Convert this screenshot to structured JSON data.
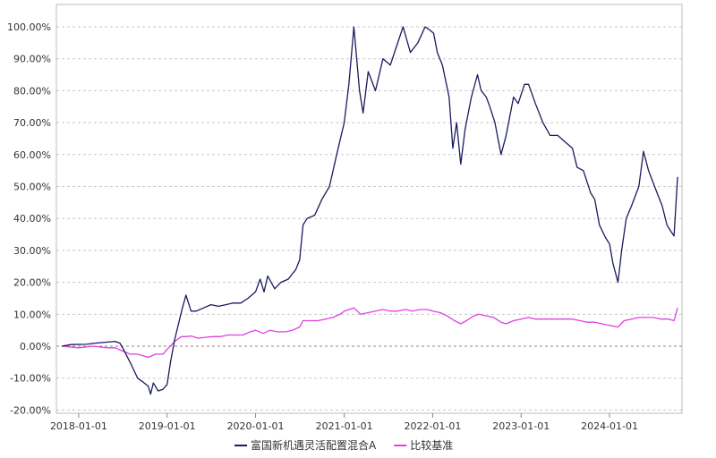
{
  "chart_data": {
    "type": "line",
    "title": "",
    "xlabel": "",
    "ylabel": "",
    "grid": true,
    "legend_position": "bottom",
    "xlim": [
      "2017-10-01",
      "2024-10-26"
    ],
    "ylim": [
      -21.0,
      107.0
    ],
    "y_ticks": [
      -20,
      -10,
      0,
      10,
      20,
      30,
      40,
      50,
      60,
      70,
      80,
      90,
      100
    ],
    "y_tick_labels": [
      "-20.00%",
      "-10.00%",
      "0.00%",
      "10.00%",
      "20.00%",
      "30.00%",
      "40.00%",
      "50.00%",
      "60.00%",
      "70.00%",
      "80.00%",
      "90.00%",
      "100.00%"
    ],
    "x_ticks": [
      "2018-01-01",
      "2019-01-01",
      "2020-01-01",
      "2021-01-01",
      "2022-01-01",
      "2023-01-01",
      "2024-01-01"
    ],
    "x_tick_labels": [
      "2018-01-01",
      "2019-01-01",
      "2020-01-01",
      "2021-01-01",
      "2022-01-01",
      "2023-01-01",
      "2024-01-01"
    ],
    "series": [
      {
        "name": "富国新机遇灵活配置混合A",
        "color": "#1a1a5e",
        "points": [
          [
            "2017-10-23",
            0.0
          ],
          [
            "2017-12-01",
            0.5
          ],
          [
            "2018-02-01",
            0.6
          ],
          [
            "2018-03-15",
            1.0
          ],
          [
            "2018-05-01",
            1.3
          ],
          [
            "2018-06-01",
            1.5
          ],
          [
            "2018-06-20",
            1.0
          ],
          [
            "2018-07-05",
            -1.0
          ],
          [
            "2018-08-01",
            -5.0
          ],
          [
            "2018-08-20",
            -8.0
          ],
          [
            "2018-09-01",
            -10.0
          ],
          [
            "2018-09-20",
            -11.0
          ],
          [
            "2018-10-15",
            -12.5
          ],
          [
            "2018-10-25",
            -15.0
          ],
          [
            "2018-11-05",
            -11.5
          ],
          [
            "2018-11-25",
            -14.0
          ],
          [
            "2018-12-15",
            -13.5
          ],
          [
            "2019-01-01",
            -12.0
          ],
          [
            "2019-01-15",
            -5.0
          ],
          [
            "2019-02-01",
            2.0
          ],
          [
            "2019-02-20",
            8.0
          ],
          [
            "2019-03-05",
            12.0
          ],
          [
            "2019-03-20",
            16.0
          ],
          [
            "2019-04-10",
            11.0
          ],
          [
            "2019-05-01",
            11.0
          ],
          [
            "2019-06-01",
            12.0
          ],
          [
            "2019-07-01",
            13.0
          ],
          [
            "2019-08-01",
            12.5
          ],
          [
            "2019-09-01",
            13.0
          ],
          [
            "2019-10-01",
            13.5
          ],
          [
            "2019-11-01",
            13.5
          ],
          [
            "2019-12-01",
            15.0
          ],
          [
            "2020-01-01",
            17.0
          ],
          [
            "2020-01-20",
            21.0
          ],
          [
            "2020-02-05",
            17.0
          ],
          [
            "2020-02-20",
            22.0
          ],
          [
            "2020-03-20",
            18.0
          ],
          [
            "2020-04-15",
            20.0
          ],
          [
            "2020-05-15",
            21.0
          ],
          [
            "2020-06-15",
            24.0
          ],
          [
            "2020-07-01",
            27.0
          ],
          [
            "2020-07-15",
            38.0
          ],
          [
            "2020-08-01",
            40.0
          ],
          [
            "2020-09-01",
            41.0
          ],
          [
            "2020-10-01",
            46.0
          ],
          [
            "2020-11-01",
            50.0
          ],
          [
            "2020-12-01",
            60.0
          ],
          [
            "2021-01-01",
            70.0
          ],
          [
            "2021-01-20",
            82.0
          ],
          [
            "2021-02-10",
            100.0
          ],
          [
            "2021-03-05",
            80.0
          ],
          [
            "2021-03-20",
            73.0
          ],
          [
            "2021-04-10",
            86.0
          ],
          [
            "2021-05-10",
            80.0
          ],
          [
            "2021-06-10",
            90.0
          ],
          [
            "2021-07-10",
            88.0
          ],
          [
            "2021-08-01",
            93.0
          ],
          [
            "2021-09-01",
            100.0
          ],
          [
            "2021-10-01",
            92.0
          ],
          [
            "2021-11-01",
            95.0
          ],
          [
            "2021-12-01",
            100.0
          ],
          [
            "2021-12-20",
            99.0
          ],
          [
            "2022-01-05",
            98.0
          ],
          [
            "2022-01-20",
            92.0
          ],
          [
            "2022-02-10",
            88.0
          ],
          [
            "2022-03-10",
            78.0
          ],
          [
            "2022-03-25",
            62.0
          ],
          [
            "2022-04-10",
            70.0
          ],
          [
            "2022-04-27",
            57.0
          ],
          [
            "2022-05-15",
            68.0
          ],
          [
            "2022-06-10",
            78.0
          ],
          [
            "2022-07-05",
            85.0
          ],
          [
            "2022-07-20",
            80.0
          ],
          [
            "2022-08-10",
            78.0
          ],
          [
            "2022-08-25",
            75.0
          ],
          [
            "2022-09-15",
            70.0
          ],
          [
            "2022-10-10",
            60.0
          ],
          [
            "2022-10-31",
            66.0
          ],
          [
            "2022-12-01",
            78.0
          ],
          [
            "2022-12-20",
            76.0
          ],
          [
            "2023-01-15",
            82.0
          ],
          [
            "2023-02-01",
            82.0
          ],
          [
            "2023-03-01",
            76.0
          ],
          [
            "2023-04-01",
            70.0
          ],
          [
            "2023-05-01",
            66.0
          ],
          [
            "2023-06-01",
            66.0
          ],
          [
            "2023-07-01",
            64.0
          ],
          [
            "2023-08-01",
            62.0
          ],
          [
            "2023-08-20",
            56.0
          ],
          [
            "2023-09-15",
            55.0
          ],
          [
            "2023-10-15",
            48.0
          ],
          [
            "2023-11-01",
            46.0
          ],
          [
            "2023-11-20",
            38.0
          ],
          [
            "2023-12-15",
            34.0
          ],
          [
            "2024-01-01",
            32.0
          ],
          [
            "2024-01-15",
            26.0
          ],
          [
            "2024-02-05",
            20.0
          ],
          [
            "2024-02-20",
            30.0
          ],
          [
            "2024-03-10",
            40.0
          ],
          [
            "2024-04-01",
            44.0
          ],
          [
            "2024-05-01",
            50.0
          ],
          [
            "2024-05-20",
            61.0
          ],
          [
            "2024-06-10",
            55.0
          ],
          [
            "2024-07-10",
            49.0
          ],
          [
            "2024-08-05",
            44.0
          ],
          [
            "2024-08-25",
            38.0
          ],
          [
            "2024-09-10",
            36.0
          ],
          [
            "2024-09-23",
            34.5
          ],
          [
            "2024-10-08",
            53.0
          ]
        ]
      },
      {
        "name": "比较基准",
        "color": "#e040e0",
        "points": [
          [
            "2017-10-23",
            0.0
          ],
          [
            "2018-01-01",
            -0.5
          ],
          [
            "2018-03-01",
            0.0
          ],
          [
            "2018-05-01",
            -0.5
          ],
          [
            "2018-06-01",
            -0.5
          ],
          [
            "2018-07-01",
            -1.5
          ],
          [
            "2018-08-01",
            -2.5
          ],
          [
            "2018-09-01",
            -2.5
          ],
          [
            "2018-10-15",
            -3.5
          ],
          [
            "2018-11-15",
            -2.5
          ],
          [
            "2018-12-15",
            -2.5
          ],
          [
            "2019-01-01",
            -1.0
          ],
          [
            "2019-02-01",
            1.5
          ],
          [
            "2019-03-01",
            3.0
          ],
          [
            "2019-03-20",
            3.0
          ],
          [
            "2019-04-10",
            3.2
          ],
          [
            "2019-05-10",
            2.5
          ],
          [
            "2019-06-10",
            2.8
          ],
          [
            "2019-07-10",
            3.0
          ],
          [
            "2019-08-10",
            3.0
          ],
          [
            "2019-09-10",
            3.5
          ],
          [
            "2019-10-10",
            3.5
          ],
          [
            "2019-11-10",
            3.5
          ],
          [
            "2019-12-10",
            4.5
          ],
          [
            "2020-01-01",
            5.0
          ],
          [
            "2020-02-01",
            4.0
          ],
          [
            "2020-03-01",
            5.0
          ],
          [
            "2020-04-01",
            4.5
          ],
          [
            "2020-05-01",
            4.5
          ],
          [
            "2020-06-01",
            5.0
          ],
          [
            "2020-07-01",
            6.0
          ],
          [
            "2020-07-15",
            8.0
          ],
          [
            "2020-08-15",
            8.0
          ],
          [
            "2020-09-15",
            8.0
          ],
          [
            "2020-10-15",
            8.5
          ],
          [
            "2020-11-15",
            9.0
          ],
          [
            "2020-12-15",
            10.0
          ],
          [
            "2021-01-01",
            11.0
          ],
          [
            "2021-02-10",
            12.0
          ],
          [
            "2021-03-10",
            10.0
          ],
          [
            "2021-04-10",
            10.5
          ],
          [
            "2021-05-10",
            11.0
          ],
          [
            "2021-06-10",
            11.5
          ],
          [
            "2021-07-10",
            11.0
          ],
          [
            "2021-08-10",
            11.0
          ],
          [
            "2021-09-10",
            11.5
          ],
          [
            "2021-10-10",
            11.0
          ],
          [
            "2021-11-10",
            11.5
          ],
          [
            "2021-12-10",
            11.5
          ],
          [
            "2022-01-01",
            11.0
          ],
          [
            "2022-02-01",
            10.5
          ],
          [
            "2022-03-01",
            9.5
          ],
          [
            "2022-04-01",
            8.0
          ],
          [
            "2022-04-27",
            7.0
          ],
          [
            "2022-05-20",
            8.0
          ],
          [
            "2022-06-20",
            9.5
          ],
          [
            "2022-07-10",
            10.0
          ],
          [
            "2022-08-10",
            9.5
          ],
          [
            "2022-09-10",
            9.0
          ],
          [
            "2022-10-10",
            7.5
          ],
          [
            "2022-10-31",
            7.0
          ],
          [
            "2022-12-01",
            8.0
          ],
          [
            "2023-01-01",
            8.5
          ],
          [
            "2023-02-01",
            9.0
          ],
          [
            "2023-03-01",
            8.5
          ],
          [
            "2023-04-01",
            8.5
          ],
          [
            "2023-05-01",
            8.5
          ],
          [
            "2023-06-01",
            8.5
          ],
          [
            "2023-07-01",
            8.5
          ],
          [
            "2023-08-01",
            8.5
          ],
          [
            "2023-09-01",
            8.0
          ],
          [
            "2023-10-01",
            7.5
          ],
          [
            "2023-11-01",
            7.5
          ],
          [
            "2023-12-01",
            7.0
          ],
          [
            "2024-01-01",
            6.5
          ],
          [
            "2024-02-05",
            6.0
          ],
          [
            "2024-03-01",
            8.0
          ],
          [
            "2024-04-01",
            8.5
          ],
          [
            "2024-05-01",
            9.0
          ],
          [
            "2024-06-01",
            9.0
          ],
          [
            "2024-07-01",
            9.0
          ],
          [
            "2024-08-01",
            8.5
          ],
          [
            "2024-09-01",
            8.5
          ],
          [
            "2024-09-23",
            8.0
          ],
          [
            "2024-10-08",
            12.0
          ]
        ]
      }
    ]
  }
}
